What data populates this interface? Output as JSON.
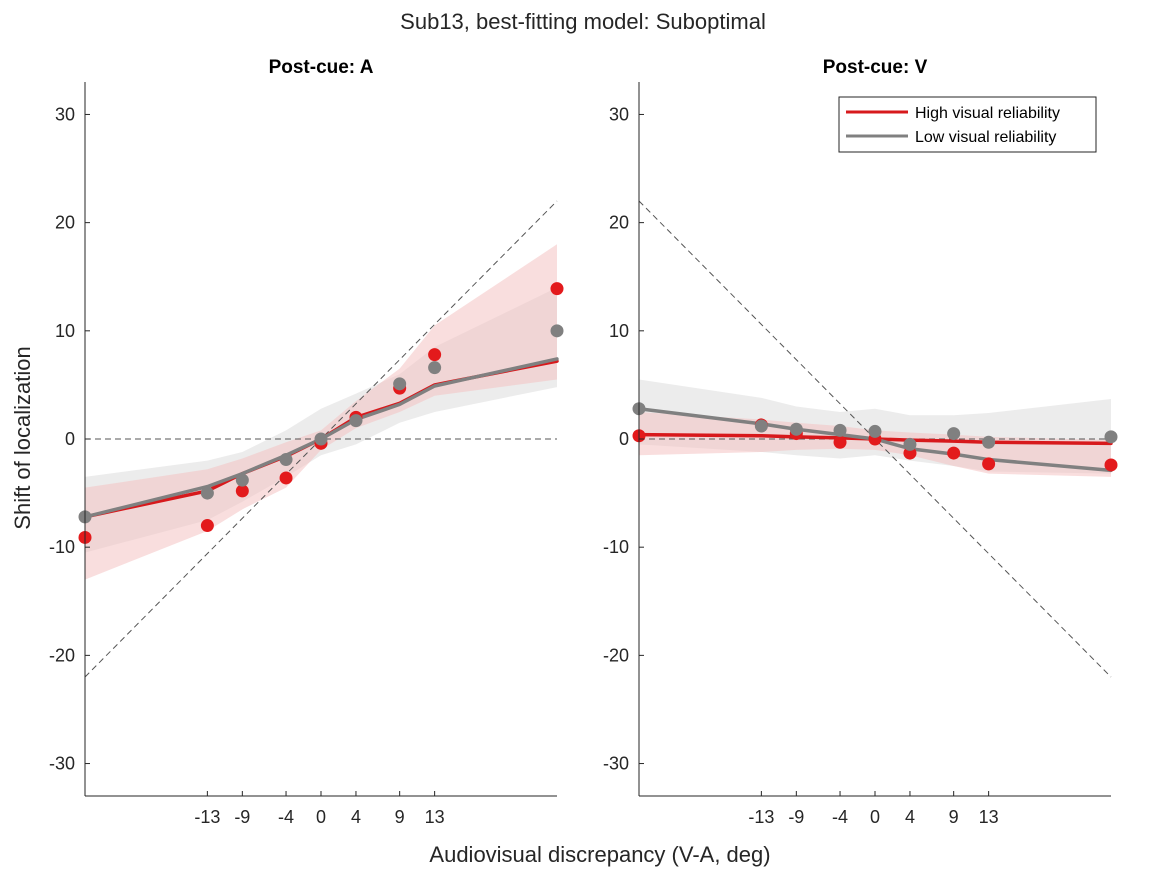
{
  "figure": {
    "title": "Sub13, best-fitting model: Suboptimal",
    "xlabel": "Audiovisual discrepancy (V-A, deg)",
    "ylabel": "Shift of localization"
  },
  "legend": {
    "placement": "top-right",
    "entries": [
      {
        "name": "High visual reliability",
        "color": "#d7191c"
      },
      {
        "name": "Low visual reliability",
        "color": "#808080"
      }
    ]
  },
  "colors": {
    "high": "#d7191c",
    "high_dot": "#e31a1c",
    "high_band": "#f4c2c3",
    "low": "#808080",
    "low_band": "#e0e0e0",
    "axis": "#262626"
  },
  "chart_data": [
    {
      "type": "line",
      "title": "Post-cue: A",
      "xlim": [
        -27,
        27
      ],
      "ylim": [
        -33,
        33
      ],
      "x_ticks": [
        -13,
        -9,
        -4,
        0,
        4,
        9,
        13
      ],
      "x_tick_labels": [
        "-13",
        "-9",
        "-4",
        "0",
        "4",
        "9",
        "13"
      ],
      "y_ticks": [
        30,
        20,
        10,
        0,
        -10,
        -20,
        -30
      ],
      "y_tick_labels": [
        "30",
        "20",
        "10",
        "0",
        "-10",
        "-20",
        "-30"
      ],
      "reference_lines": [
        {
          "style": "dashed",
          "points": [
            [
              -27,
              -22
            ],
            [
              27,
              22
            ]
          ]
        },
        {
          "style": "dashed",
          "points": [
            [
              -27,
              0
            ],
            [
              27,
              0
            ]
          ]
        }
      ],
      "series": [
        {
          "key": "high",
          "x": [
            -27,
            -13,
            -9,
            -4,
            0,
            4,
            9,
            13,
            27
          ],
          "points": [
            -9.1,
            -8.0,
            -4.8,
            -3.6,
            -0.4,
            2.0,
            4.7,
            7.8,
            13.9
          ],
          "fit": [
            -7.2,
            -4.8,
            -3.2,
            -1.6,
            0.0,
            2.0,
            3.3,
            5.0,
            7.2
          ],
          "band_upper": [
            -4.5,
            -2.8,
            -1.8,
            -0.3,
            0.8,
            3.5,
            6.5,
            10.5,
            18.0
          ],
          "band_lower": [
            -13.0,
            -8.5,
            -6.5,
            -4.5,
            -1.0,
            1.0,
            2.5,
            4.0,
            5.5
          ]
        },
        {
          "key": "low",
          "x": [
            -27,
            -13,
            -9,
            -4,
            0,
            4,
            9,
            13,
            27
          ],
          "points": [
            -7.2,
            -5.0,
            -3.8,
            -1.9,
            0.0,
            1.7,
            5.1,
            6.6,
            10.0
          ],
          "fit": [
            -7.2,
            -4.4,
            -3.2,
            -1.5,
            0.0,
            1.8,
            3.2,
            4.9,
            7.4
          ],
          "band_upper": [
            -3.5,
            -2.0,
            -1.2,
            0.8,
            2.8,
            4.2,
            6.0,
            8.5,
            14.0
          ],
          "band_lower": [
            -10.5,
            -7.5,
            -5.8,
            -3.5,
            -1.5,
            -0.5,
            1.5,
            2.5,
            4.8
          ]
        }
      ]
    },
    {
      "type": "line",
      "title": "Post-cue: V",
      "xlim": [
        -27,
        27
      ],
      "ylim": [
        -33,
        33
      ],
      "x_ticks": [
        -13,
        -9,
        -4,
        0,
        4,
        9,
        13
      ],
      "x_tick_labels": [
        "-13",
        "-9",
        "-4",
        "0",
        "4",
        "9",
        "13"
      ],
      "y_ticks": [
        30,
        20,
        10,
        0,
        -10,
        -20,
        -30
      ],
      "y_tick_labels": [
        "30",
        "20",
        "10",
        "0",
        "-10",
        "-20",
        "-30"
      ],
      "reference_lines": [
        {
          "style": "dashed",
          "points": [
            [
              -27,
              22
            ],
            [
              27,
              -22
            ]
          ]
        },
        {
          "style": "dashed",
          "points": [
            [
              -27,
              0
            ],
            [
              27,
              0
            ]
          ]
        }
      ],
      "series": [
        {
          "key": "high",
          "x": [
            -27,
            -13,
            -9,
            -4,
            0,
            4,
            9,
            13,
            27
          ],
          "points": [
            0.3,
            1.3,
            0.5,
            -0.3,
            0.0,
            -1.3,
            -1.3,
            -2.3,
            -2.4
          ],
          "fit": [
            0.4,
            0.3,
            0.2,
            0.1,
            0.0,
            -0.1,
            -0.2,
            -0.3,
            -0.4
          ],
          "band_upper": [
            2.5,
            1.8,
            1.5,
            1.2,
            0.8,
            0.6,
            0.4,
            0.2,
            -0.1
          ],
          "band_lower": [
            -1.5,
            -1.2,
            -1.0,
            -0.9,
            -1.0,
            -1.5,
            -2.5,
            -3.2,
            -3.5
          ]
        },
        {
          "key": "low",
          "x": [
            -27,
            -13,
            -9,
            -4,
            0,
            4,
            9,
            13,
            27
          ],
          "points": [
            2.8,
            1.2,
            0.9,
            0.8,
            0.7,
            -0.5,
            0.5,
            -0.3,
            0.2
          ],
          "fit": [
            2.8,
            1.4,
            0.9,
            0.4,
            0.0,
            -0.9,
            -1.4,
            -1.9,
            -2.9
          ],
          "band_upper": [
            5.5,
            3.8,
            3.0,
            2.5,
            2.8,
            2.2,
            2.2,
            2.4,
            3.7
          ],
          "band_lower": [
            -0.5,
            -1.2,
            -1.5,
            -1.8,
            -1.5,
            -2.0,
            -2.5,
            -3.0,
            -3.2
          ]
        }
      ]
    }
  ]
}
